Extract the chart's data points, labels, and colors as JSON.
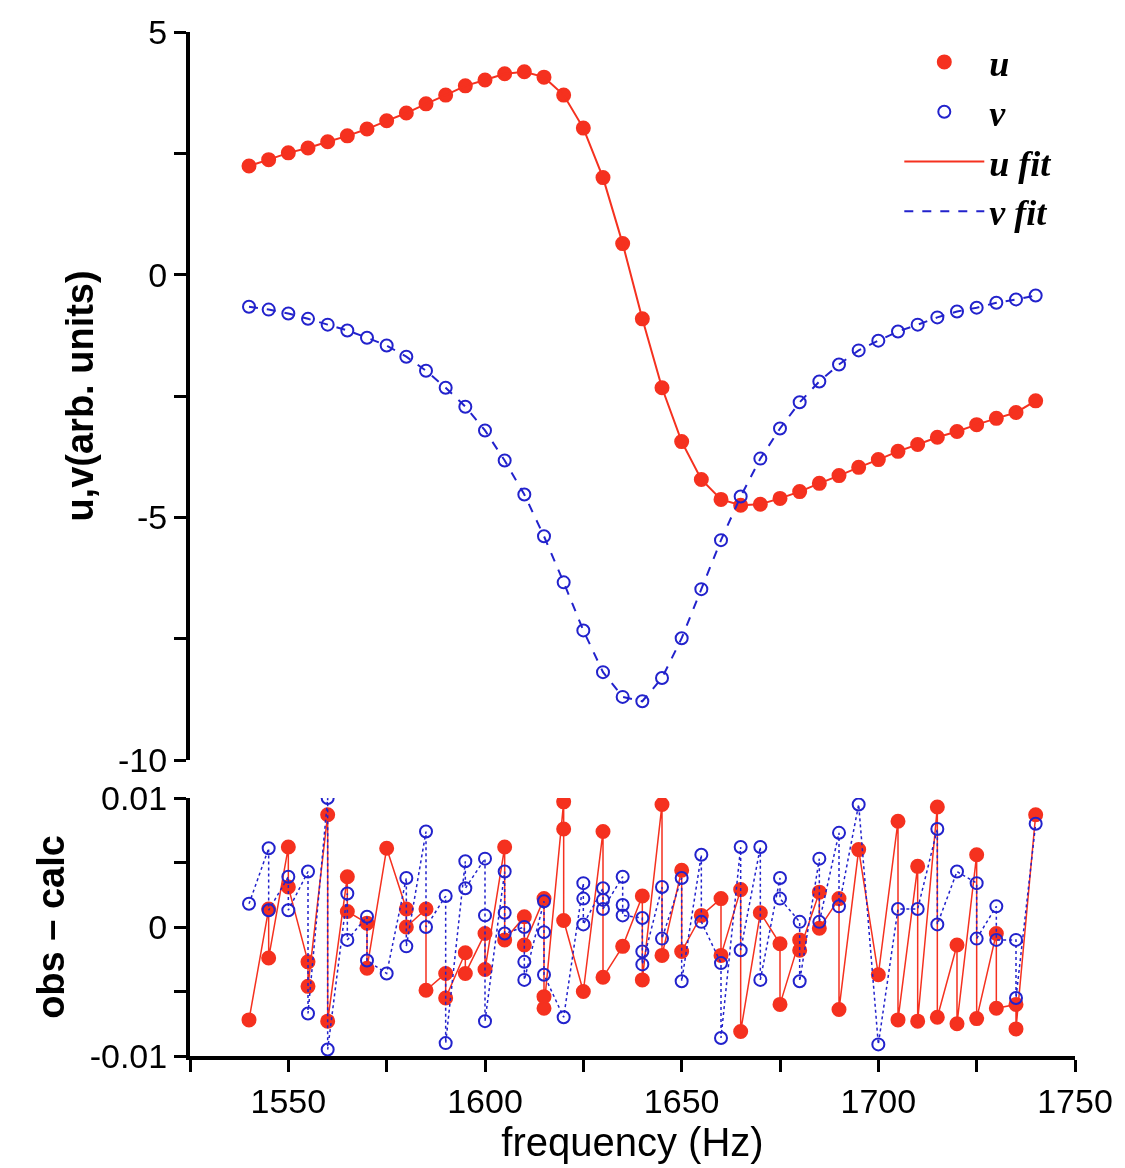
{
  "chart_data": [
    {
      "type": "scatter",
      "ylabel": "u,v(arb. units)",
      "xlim": [
        1525,
        1750
      ],
      "ylim": [
        -10,
        5
      ],
      "yticks": [
        5,
        {
          "value": 2.5,
          "label": null
        },
        0,
        {
          "value": -2.5,
          "label": null
        },
        -5,
        {
          "value": -7.5,
          "label": null
        },
        -10
      ],
      "tick_labels": "y",
      "legend": "top right",
      "x": [
        1540,
        1545,
        1550,
        1555,
        1560,
        1565,
        1570,
        1575,
        1580,
        1585,
        1590,
        1595,
        1600,
        1605,
        1610,
        1615,
        1620,
        1625,
        1630,
        1635,
        1640,
        1645,
        1650,
        1655,
        1660,
        1665,
        1670,
        1675,
        1680,
        1685,
        1690,
        1695,
        1700,
        1705,
        1710,
        1715,
        1720,
        1725,
        1730,
        1735,
        1740
      ],
      "series": [
        {
          "name": "u",
          "marker": "circle",
          "color": "#f5311f",
          "values": [
            2.24,
            2.37,
            2.51,
            2.61,
            2.74,
            2.86,
            3.0,
            3.17,
            3.33,
            3.52,
            3.7,
            3.89,
            4.01,
            4.14,
            4.18,
            4.07,
            3.7,
            3.02,
            2.0,
            0.64,
            -0.91,
            -2.33,
            -3.44,
            -4.22,
            -4.63,
            -4.75,
            -4.73,
            -4.61,
            -4.47,
            -4.3,
            -4.14,
            -3.97,
            -3.81,
            -3.64,
            -3.5,
            -3.35,
            -3.23,
            -3.09,
            -2.96,
            -2.84,
            -2.6
          ]
        },
        {
          "name": "v",
          "marker": "circle-open",
          "color": "#2222cc",
          "values": [
            -0.66,
            -0.72,
            -0.8,
            -0.91,
            -1.03,
            -1.15,
            -1.3,
            -1.46,
            -1.69,
            -1.98,
            -2.33,
            -2.72,
            -3.21,
            -3.83,
            -4.53,
            -5.39,
            -6.34,
            -7.33,
            -8.19,
            -8.7,
            -8.79,
            -8.31,
            -7.49,
            -6.48,
            -5.47,
            -4.57,
            -3.79,
            -3.17,
            -2.63,
            -2.2,
            -1.85,
            -1.56,
            -1.36,
            -1.17,
            -1.03,
            -0.88,
            -0.76,
            -0.68,
            -0.58,
            -0.51,
            -0.43
          ]
        },
        {
          "name": "u fit",
          "type": "line",
          "marker": "none",
          "line_style": "solid",
          "color": "#f5311f",
          "values": [
            2.24,
            2.37,
            2.51,
            2.61,
            2.74,
            2.86,
            3.0,
            3.17,
            3.33,
            3.52,
            3.7,
            3.89,
            4.01,
            4.14,
            4.18,
            4.07,
            3.7,
            3.02,
            2.0,
            0.64,
            -0.91,
            -2.33,
            -3.44,
            -4.22,
            -4.63,
            -4.75,
            -4.73,
            -4.61,
            -4.47,
            -4.3,
            -4.14,
            -3.97,
            -3.81,
            -3.64,
            -3.5,
            -3.35,
            -3.23,
            -3.09,
            -2.96,
            -2.84,
            -2.6
          ]
        },
        {
          "name": "v fit",
          "type": "line",
          "marker": "none",
          "line_style": "dashed",
          "color": "#2222cc",
          "values": [
            -0.66,
            -0.72,
            -0.8,
            -0.91,
            -1.03,
            -1.15,
            -1.3,
            -1.46,
            -1.69,
            -1.98,
            -2.33,
            -2.72,
            -3.21,
            -3.83,
            -4.53,
            -5.39,
            -6.34,
            -7.33,
            -8.19,
            -8.7,
            -8.79,
            -8.31,
            -7.49,
            -6.48,
            -5.47,
            -4.57,
            -3.79,
            -3.17,
            -2.63,
            -2.2,
            -1.85,
            -1.56,
            -1.36,
            -1.17,
            -1.03,
            -0.88,
            -0.76,
            -0.68,
            -0.58,
            -0.51,
            -0.43
          ]
        }
      ]
    },
    {
      "type": "line",
      "ylabel": "obs – calc",
      "xlabel": "frequency (Hz)",
      "xlim": [
        1525,
        1750
      ],
      "ylim": [
        -0.01,
        0.01
      ],
      "xticks": [
        {
          "value": 1525,
          "label": null
        },
        1550,
        {
          "value": 1575,
          "label": null
        },
        1600,
        {
          "value": 1625,
          "label": null
        },
        1650,
        {
          "value": 1675,
          "label": null
        },
        1700,
        {
          "value": 1725,
          "label": null
        },
        1750
      ],
      "yticks": [
        -0.01,
        {
          "value": -0.005,
          "label": null
        },
        0,
        {
          "value": 0.005,
          "label": null
        },
        0.01
      ],
      "series": [
        {
          "marker": "circle",
          "line_style": "solid",
          "color": "#f5311f",
          "x": [
            1540,
            1545,
            1545,
            1550,
            1550,
            1555,
            1555,
            1560,
            1560,
            1565,
            1565,
            1570,
            1570,
            1575,
            1580,
            1580,
            1585,
            1585,
            1590,
            1590,
            1595,
            1595,
            1600,
            1600,
            1605,
            1605,
            1610,
            1610,
            1615,
            1615,
            1615,
            1620,
            1620,
            1620,
            1625,
            1630,
            1630,
            1635,
            1640,
            1640,
            1645,
            1645,
            1650,
            1650,
            1655,
            1660,
            1660,
            1665,
            1665,
            1670,
            1675,
            1675,
            1680,
            1680,
            1685,
            1685,
            1690,
            1690,
            1695,
            1700,
            1705,
            1705,
            1710,
            1710,
            1715,
            1715,
            1720,
            1720,
            1725,
            1725,
            1730,
            1730,
            1735,
            1735,
            1740
          ],
          "values": [
            -0.0072,
            0.0014,
            -0.0024,
            0.0062,
            0.0031,
            -0.0027,
            -0.0046,
            0.0087,
            -0.0073,
            0.0039,
            0.0012,
            0.0003,
            -0.0032,
            0.0061,
            0.0014,
            0.0,
            0.0014,
            -0.0049,
            -0.0036,
            -0.0055,
            -0.002,
            -0.0036,
            -0.0005,
            -0.0033,
            0.0062,
            -0.001,
            0.0008,
            -0.0014,
            0.0022,
            -0.0054,
            -0.0063,
            0.0097,
            0.0076,
            0.0005,
            -0.005,
            0.0074,
            -0.0039,
            -0.0015,
            0.0024,
            -0.0041,
            0.0095,
            -0.0022,
            0.0044,
            -0.0019,
            0.0009,
            0.0022,
            -0.0022,
            0.0029,
            -0.0081,
            0.0011,
            -0.0013,
            -0.006,
            -0.001,
            -0.0018,
            0.0027,
            -0.0001,
            0.0022,
            -0.0064,
            0.006,
            -0.0037,
            0.0082,
            -0.0072,
            0.0047,
            -0.0073,
            0.0093,
            -0.007,
            -0.0014,
            -0.0075,
            0.0056,
            -0.0071,
            -0.0005,
            -0.0063,
            -0.006,
            -0.0079,
            0.0087
          ]
        },
        {
          "marker": "circle-open",
          "line_style": "dotted",
          "color": "#2222cc",
          "x": [
            1540,
            1545,
            1545,
            1550,
            1550,
            1555,
            1555,
            1560,
            1560,
            1565,
            1565,
            1570,
            1570,
            1575,
            1580,
            1580,
            1585,
            1585,
            1590,
            1590,
            1595,
            1595,
            1600,
            1600,
            1600,
            1605,
            1605,
            1605,
            1610,
            1610,
            1610,
            1615,
            1615,
            1615,
            1620,
            1625,
            1625,
            1625,
            1630,
            1630,
            1630,
            1635,
            1635,
            1635,
            1640,
            1640,
            1640,
            1645,
            1645,
            1650,
            1650,
            1655,
            1655,
            1660,
            1660,
            1665,
            1665,
            1670,
            1670,
            1675,
            1675,
            1680,
            1680,
            1685,
            1685,
            1690,
            1690,
            1695,
            1700,
            1705,
            1710,
            1715,
            1715,
            1720,
            1725,
            1725,
            1730,
            1730,
            1735,
            1735,
            1740
          ],
          "values": [
            0.0018,
            0.0061,
            0.0013,
            0.0039,
            0.0013,
            0.0043,
            -0.0067,
            0.01,
            -0.0095,
            0.0026,
            -0.001,
            0.0008,
            -0.0026,
            -0.0036,
            0.0038,
            -0.0015,
            0.0074,
            0.0,
            0.0024,
            -0.009,
            0.0051,
            0.003,
            0.0053,
            0.0009,
            -0.0073,
            0.0043,
            0.0011,
            -0.0005,
            0.0,
            -0.0027,
            -0.0041,
            0.002,
            -0.0004,
            -0.0037,
            -0.007,
            0.0034,
            0.0022,
            0.0002,
            0.003,
            0.0021,
            0.0014,
            0.0039,
            0.0017,
            0.0009,
            0.0007,
            -0.0019,
            -0.0029,
            0.0031,
            -0.0009,
            0.0038,
            -0.0042,
            0.0056,
            0.0004,
            -0.0028,
            -0.0086,
            0.0062,
            -0.0018,
            0.0062,
            -0.0041,
            0.0038,
            0.0022,
            0.0004,
            -0.0042,
            0.0053,
            0.0004,
            0.0073,
            0.0016,
            0.0095,
            -0.0091,
            0.0014,
            0.0014,
            0.0076,
            0.0002,
            0.0043,
            0.0034,
            -0.0009,
            0.0016,
            -0.001,
            -0.001,
            -0.0055,
            0.008
          ]
        }
      ]
    }
  ]
}
